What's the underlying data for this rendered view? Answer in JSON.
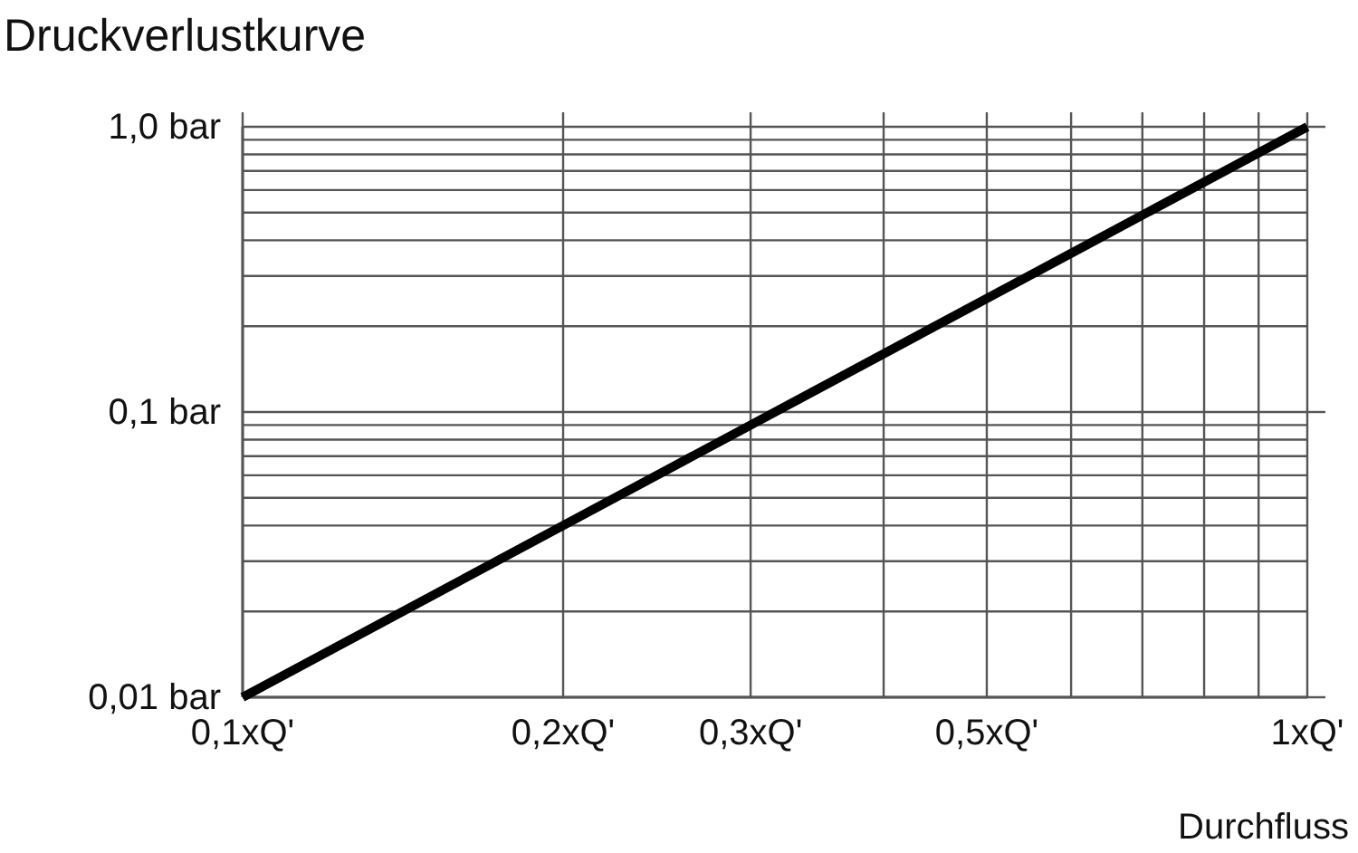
{
  "chart_data": {
    "type": "line",
    "title": "Druckverlustkurve",
    "xlabel": "Durchfluss",
    "log": "xy",
    "grid": true,
    "marker": "none",
    "line_style": "solid",
    "x": [
      0.1,
      1
    ],
    "series": [
      {
        "color": "#000000",
        "values": [
          0.01,
          1
        ]
      }
    ],
    "xlim": [
      0.1,
      1
    ],
    "xticks": [
      {
        "value": 0.1,
        "label": "0,1xQ'"
      },
      {
        "value": 0.2,
        "label": "0,2xQ'"
      },
      {
        "value": 0.3,
        "label": "0,3xQ'"
      },
      {
        "value": 0.4,
        "label": null
      },
      {
        "value": 0.5,
        "label": "0,5xQ'"
      },
      {
        "value": 0.6,
        "label": null
      },
      {
        "value": 0.7,
        "label": null
      },
      {
        "value": 0.8,
        "label": null
      },
      {
        "value": 0.9,
        "label": null
      },
      {
        "value": 1,
        "label": "1xQ'"
      }
    ],
    "ylim": [
      0.01,
      1
    ],
    "yticks": [
      {
        "value": 0.01,
        "label": "0,01 bar"
      },
      {
        "value": 0.02,
        "label": null
      },
      {
        "value": 0.03,
        "label": null
      },
      {
        "value": 0.04,
        "label": null
      },
      {
        "value": 0.05,
        "label": null
      },
      {
        "value": 0.06,
        "label": null
      },
      {
        "value": 0.07,
        "label": null
      },
      {
        "value": 0.08,
        "label": null
      },
      {
        "value": 0.09,
        "label": null
      },
      {
        "value": 0.1,
        "label": "0,1 bar"
      },
      {
        "value": 0.2,
        "label": null
      },
      {
        "value": 0.3,
        "label": null
      },
      {
        "value": 0.4,
        "label": null
      },
      {
        "value": 0.5,
        "label": null
      },
      {
        "value": 0.6,
        "label": null
      },
      {
        "value": 0.7,
        "label": null
      },
      {
        "value": 0.8,
        "label": null
      },
      {
        "value": 0.9,
        "label": null
      },
      {
        "value": 1,
        "label": "1,0 bar"
      }
    ]
  }
}
